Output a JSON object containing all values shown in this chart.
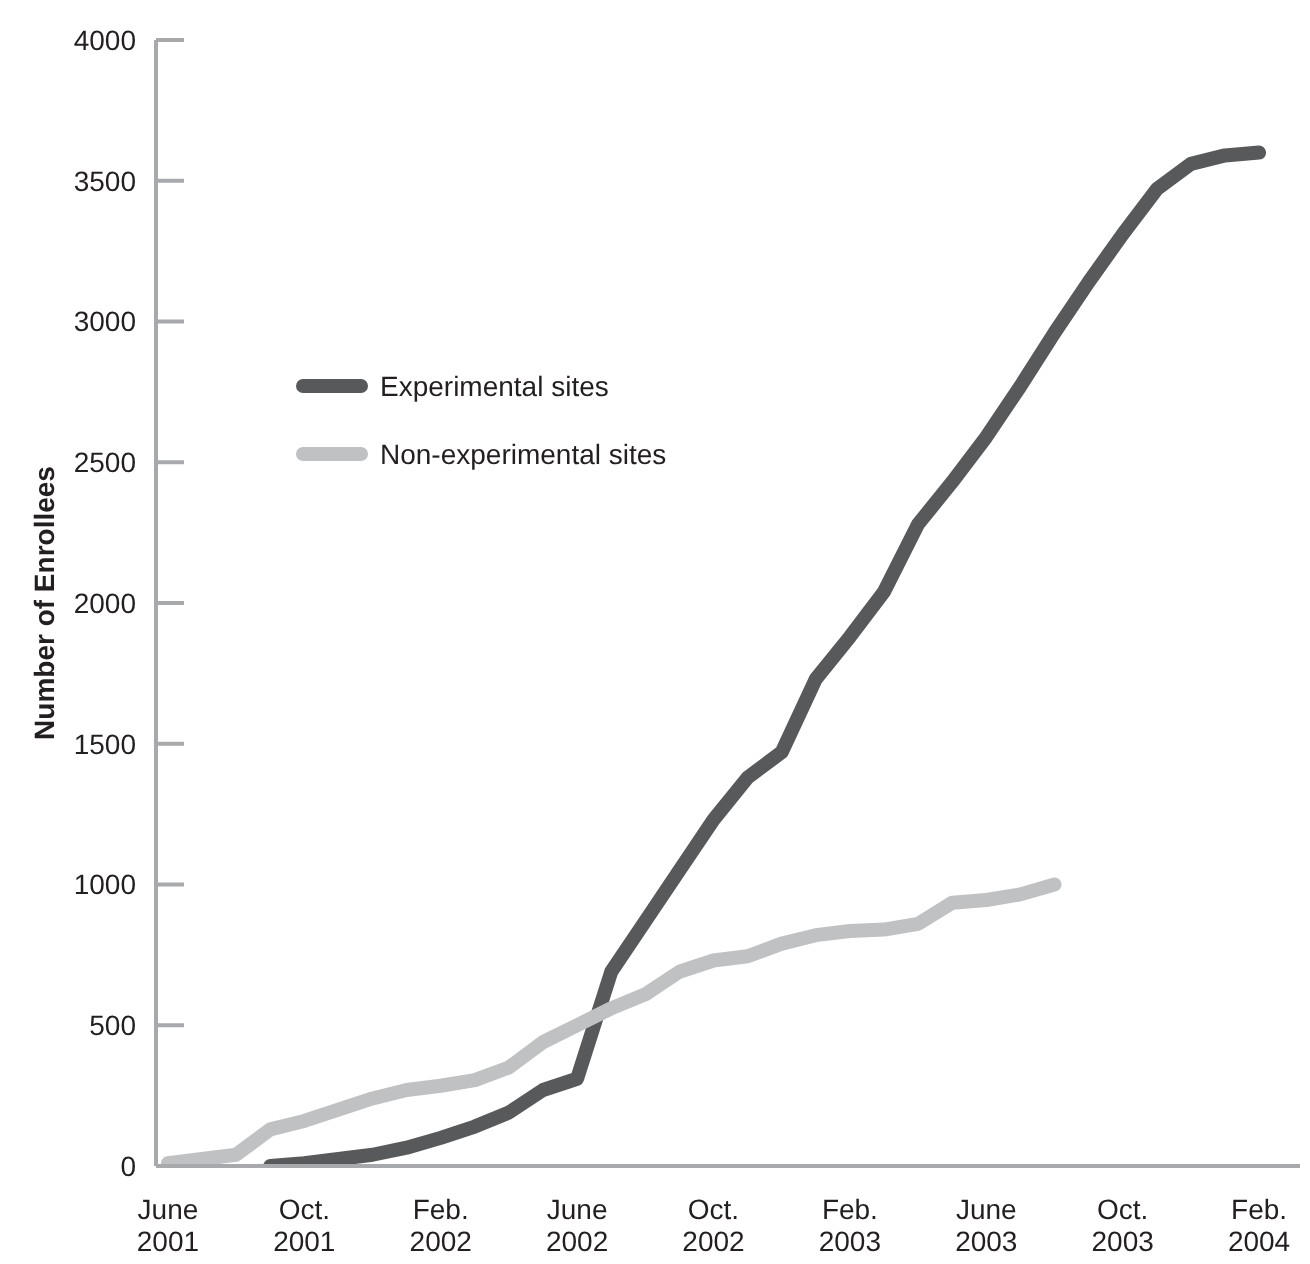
{
  "chart_data": {
    "type": "line",
    "ylabel": "Number of Enrollees",
    "categories": [
      "June 2001",
      null,
      null,
      null,
      "Oct. 2001",
      null,
      null,
      null,
      "Feb. 2002",
      null,
      null,
      null,
      "June 2002",
      null,
      null,
      null,
      "Oct. 2002",
      null,
      null,
      null,
      "Feb. 2003",
      null,
      null,
      null,
      "June 2003",
      null,
      null,
      null,
      "Oct. 2003",
      null,
      null,
      null,
      "Feb. 2004"
    ],
    "series": [
      {
        "name": "Experimental sites",
        "color": "#58595b",
        "values": [
          null,
          null,
          null,
          0,
          10,
          25,
          40,
          65,
          100,
          140,
          190,
          270,
          310,
          690,
          870,
          1050,
          1230,
          1380,
          1470,
          1730,
          1880,
          2040,
          2280,
          2430,
          2590,
          2770,
          2960,
          3140,
          3310,
          3470,
          3560,
          3590,
          3600
        ]
      },
      {
        "name": "Non-experimental sites",
        "color": "#c0c1c2",
        "values": [
          10,
          25,
          40,
          130,
          160,
          200,
          240,
          270,
          285,
          305,
          350,
          440,
          500,
          560,
          610,
          690,
          730,
          745,
          790,
          820,
          835,
          840,
          860,
          935,
          945,
          965,
          1000,
          null,
          null,
          null,
          null,
          null,
          null
        ]
      }
    ],
    "ylim": [
      0,
      4000
    ],
    "yticks": [
      0,
      500,
      1000,
      1500,
      2000,
      2500,
      3000,
      3500,
      4000
    ],
    "grid": false,
    "legend": "top left",
    "marker": "none",
    "line_style": "solid"
  }
}
